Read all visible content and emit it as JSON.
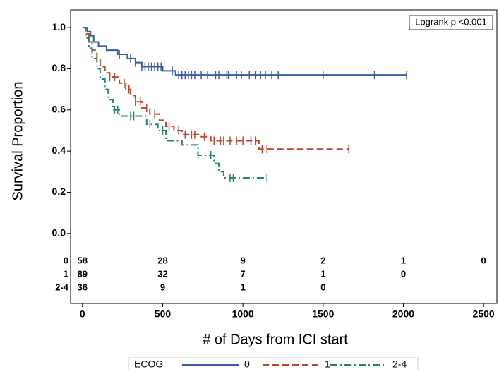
{
  "chart_data": {
    "type": "kaplan-meier",
    "annotation": "Logrank p <0.001",
    "x_label": "# of Days from ICI start",
    "y_label": "Survival Proportion",
    "xlim": [
      -74,
      2583
    ],
    "ylim": [
      -0.34,
      1.086
    ],
    "xticks": [
      0,
      500,
      1000,
      1500,
      2000,
      2500
    ],
    "yticks": [
      {
        "value": 0,
        "label": "0.0"
      },
      0.2,
      0.4,
      0.6,
      0.8,
      {
        "value": 1,
        "label": "1.0"
      }
    ],
    "legend_title": "ECOG",
    "series": [
      {
        "name": "0",
        "color": "#3b5ca9",
        "dash": "",
        "x": [
          0,
          30,
          50,
          70,
          100,
          150,
          220,
          280,
          330,
          370,
          500,
          530,
          580,
          2020
        ],
        "values": [
          1.0,
          0.98,
          0.96,
          0.93,
          0.91,
          0.89,
          0.87,
          0.85,
          0.83,
          0.81,
          0.79,
          0.79,
          0.77,
          0.77
        ],
        "censored": [
          230,
          300,
          330,
          370,
          390,
          410,
          430,
          450,
          470,
          490,
          560,
          600,
          620,
          640,
          660,
          680,
          700,
          740,
          780,
          830,
          850,
          900,
          910,
          960,
          990,
          1040,
          1080,
          1110,
          1140,
          1180,
          1220,
          1500,
          1820,
          2020
        ]
      },
      {
        "name": "1",
        "color": "#c1452b",
        "dash": "9,5",
        "x": [
          0,
          20,
          40,
          60,
          90,
          110,
          140,
          170,
          230,
          270,
          300,
          330,
          370,
          420,
          480,
          520,
          570,
          620,
          730,
          800,
          1100,
          1660
        ],
        "values": [
          1.0,
          0.97,
          0.93,
          0.89,
          0.85,
          0.81,
          0.78,
          0.76,
          0.73,
          0.7,
          0.67,
          0.64,
          0.61,
          0.58,
          0.55,
          0.52,
          0.5,
          0.48,
          0.47,
          0.45,
          0.41,
          0.41
        ],
        "censored": [
          170,
          200,
          260,
          290,
          330,
          360,
          400,
          450,
          540,
          600,
          640,
          680,
          700,
          760,
          820,
          860,
          880,
          920,
          960,
          1000,
          1050,
          1080,
          1120,
          1150,
          1660
        ]
      },
      {
        "name": "2-4",
        "color": "#1b8a6f",
        "dash": "10,4,2,4",
        "x": [
          0,
          20,
          40,
          60,
          90,
          110,
          140,
          160,
          190,
          230,
          400,
          470,
          520,
          620,
          720,
          820,
          850,
          880,
          900,
          1150
        ],
        "values": [
          1.0,
          0.95,
          0.9,
          0.85,
          0.8,
          0.75,
          0.7,
          0.65,
          0.6,
          0.57,
          0.53,
          0.5,
          0.45,
          0.43,
          0.38,
          0.34,
          0.3,
          0.27,
          0.27,
          0.27
        ],
        "censored": [
          200,
          220,
          300,
          320,
          420,
          500,
          720,
          800,
          920,
          940,
          1150
        ]
      }
    ],
    "risk_table": [
      {
        "label": "0",
        "values": [
          58,
          28,
          9,
          2,
          1,
          0
        ]
      },
      {
        "label": "1",
        "values": [
          89,
          32,
          7,
          1,
          0
        ]
      },
      {
        "label": "2-4",
        "values": [
          36,
          9,
          1,
          0
        ]
      }
    ]
  }
}
